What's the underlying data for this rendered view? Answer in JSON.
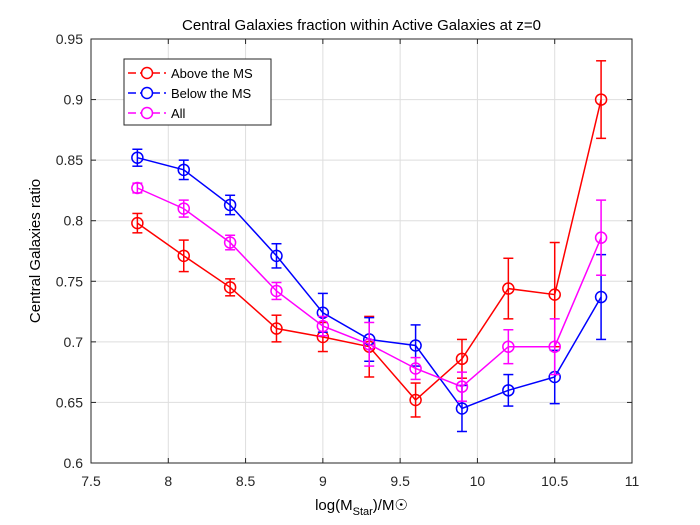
{
  "chart_data": {
    "type": "line",
    "title": "Central Galaxies fraction within Active Galaxies at z=0",
    "xlabel": {
      "main": "log(M",
      "sub": "Star",
      "tail": ")/M☉"
    },
    "ylabel": "Central Galaxies ratio",
    "xlim": [
      7.5,
      11
    ],
    "ylim": [
      0.6,
      0.95
    ],
    "xticks": [
      7.5,
      8,
      8.5,
      9,
      9.5,
      10,
      10.5,
      11
    ],
    "xtick_labels": [
      "7.5",
      "8",
      "8.5",
      "9",
      "9.5",
      "10",
      "10.5",
      "11"
    ],
    "yticks": [
      0.6,
      0.65,
      0.7,
      0.75,
      0.8,
      0.85,
      0.9,
      0.95
    ],
    "ytick_labels": [
      "0.6",
      "0.65",
      "0.7",
      "0.75",
      "0.8",
      "0.85",
      "0.9",
      "0.95"
    ],
    "grid": true,
    "legend_position": "top-left",
    "x": [
      7.8,
      8.1,
      8.4,
      8.7,
      9.0,
      9.3,
      9.6,
      9.9,
      10.2,
      10.5,
      10.8
    ],
    "series": [
      {
        "name": "Above the MS",
        "color": "#ff0000",
        "marker": "circle",
        "values": [
          0.798,
          0.771,
          0.745,
          0.711,
          0.704,
          0.696,
          0.652,
          0.686,
          0.744,
          0.739,
          0.9
        ],
        "errors": [
          0.008,
          0.013,
          0.007,
          0.011,
          0.012,
          0.025,
          0.014,
          0.016,
          0.025,
          0.043,
          0.032
        ]
      },
      {
        "name": "Below the MS",
        "color": "#0000ff",
        "marker": "circle",
        "values": [
          0.852,
          0.842,
          0.813,
          0.771,
          0.724,
          0.702,
          0.697,
          0.645,
          0.66,
          0.671,
          0.737
        ],
        "errors": [
          0.007,
          0.008,
          0.008,
          0.01,
          0.016,
          0.018,
          0.017,
          0.019,
          0.013,
          0.022,
          0.035
        ]
      },
      {
        "name": "All",
        "color": "#ff00ff",
        "marker": "circle",
        "values": [
          0.827,
          0.81,
          0.782,
          0.742,
          0.713,
          0.698,
          0.678,
          0.663,
          0.696,
          0.696,
          0.786
        ],
        "errors": [
          0.004,
          0.007,
          0.006,
          0.007,
          0.008,
          0.018,
          0.009,
          0.012,
          0.014,
          0.023,
          0.031
        ]
      }
    ]
  }
}
